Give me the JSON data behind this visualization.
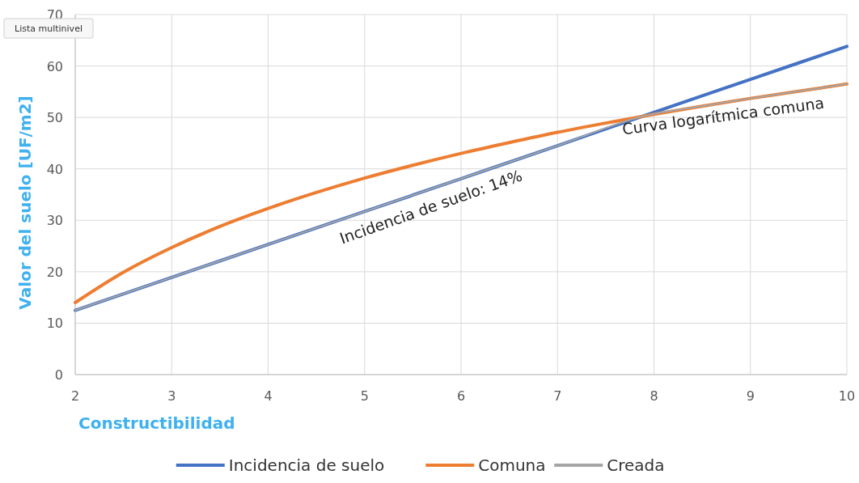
{
  "chart_data": {
    "type": "line",
    "xlabel": "Constructibilidad",
    "ylabel": "Valor del suelo [UF/m2]",
    "xlim": [
      2,
      10
    ],
    "xticks": [
      2,
      3,
      4,
      5,
      6,
      7,
      8,
      9,
      10
    ],
    "ylim": [
      0,
      70
    ],
    "yticks": [
      0,
      10,
      20,
      30,
      40,
      50,
      60,
      70
    ],
    "grid": true,
    "legend": "bottom",
    "line_style": "solid",
    "series": [
      {
        "name": "Incidencia de suelo",
        "color": "#4472c4",
        "x": [
          2,
          3,
          4,
          5,
          6,
          7,
          8,
          9,
          10
        ],
        "values": [
          12.5,
          18.9,
          25.3,
          31.7,
          38.1,
          44.5,
          51.0,
          57.4,
          63.8
        ]
      },
      {
        "name": "Comuna",
        "color": "#ed7d31",
        "x": [
          2,
          2.5,
          3,
          3.5,
          4,
          4.5,
          5,
          5.5,
          6,
          6.5,
          7,
          7.5,
          8,
          8.5,
          9,
          9.5,
          10
        ],
        "values": [
          14.0,
          19.9,
          24.7,
          28.8,
          32.3,
          35.4,
          38.2,
          40.7,
          43.0,
          45.1,
          47.1,
          48.9,
          50.6,
          52.2,
          53.7,
          55.1,
          56.5
        ]
      },
      {
        "name": "Creada",
        "color": "#a5a5a5",
        "x": [
          2,
          3,
          4,
          5,
          6,
          7,
          7.9,
          8.5,
          9,
          9.5,
          10
        ],
        "values": [
          12.5,
          18.9,
          25.3,
          31.7,
          38.1,
          44.5,
          50.3,
          52.2,
          53.7,
          55.1,
          56.5
        ]
      }
    ],
    "annotations": [
      "Incidencia de suelo: 14%",
      "Curva logarítmica comuna",
      "Lista multinivel"
    ]
  }
}
